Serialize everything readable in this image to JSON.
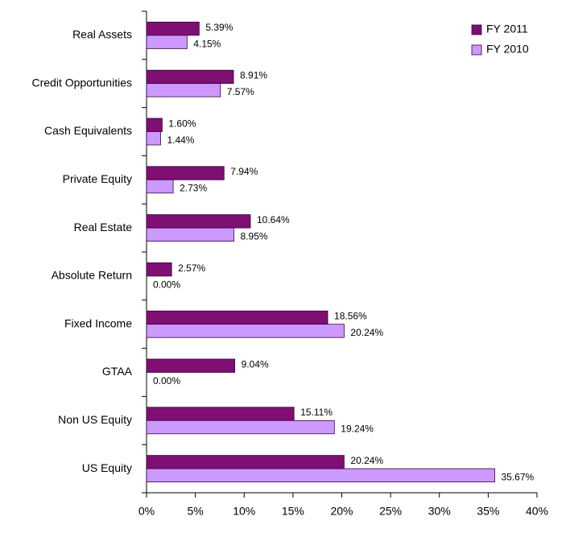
{
  "chart_data": {
    "type": "bar",
    "orientation": "horizontal",
    "categories": [
      "Real Assets",
      "Credit Opportunities",
      "Cash Equivalents",
      "Private Equity",
      "Real Estate",
      "Absolute Return",
      "Fixed Income",
      "GTAA",
      "Non US Equity",
      "US Equity"
    ],
    "series": [
      {
        "name": "FY 2011",
        "color": "#7f0f73",
        "values": [
          5.39,
          8.91,
          1.6,
          7.94,
          10.64,
          2.57,
          18.56,
          9.04,
          15.11,
          20.24
        ],
        "value_labels": [
          "5.39%",
          "8.91%",
          "1.60%",
          "7.94%",
          "10.64%",
          "2.57%",
          "18.56%",
          "9.04%",
          "15.11%",
          "20.24%"
        ]
      },
      {
        "name": "FY 2010",
        "color": "#cc99ff",
        "values": [
          4.15,
          7.57,
          1.44,
          2.73,
          8.95,
          0.0,
          20.24,
          0.0,
          19.24,
          35.67
        ],
        "value_labels": [
          "4.15%",
          "7.57%",
          "1.44%",
          "2.73%",
          "8.95%",
          "0.00%",
          "20.24%",
          "0.00%",
          "19.24%",
          "35.67%"
        ]
      }
    ],
    "xlim": [
      0,
      40
    ],
    "xticks": [
      {
        "value": 0,
        "label": "0%"
      },
      {
        "value": 5,
        "label": "5%"
      },
      {
        "value": 10,
        "label": "10%"
      },
      {
        "value": 15,
        "label": "15%"
      },
      {
        "value": 20,
        "label": "20%"
      },
      {
        "value": 25,
        "label": "25%"
      },
      {
        "value": 30,
        "label": "30%"
      },
      {
        "value": 35,
        "label": "35%"
      },
      {
        "value": 40,
        "label": "40%"
      }
    ],
    "legend": "top-right"
  }
}
